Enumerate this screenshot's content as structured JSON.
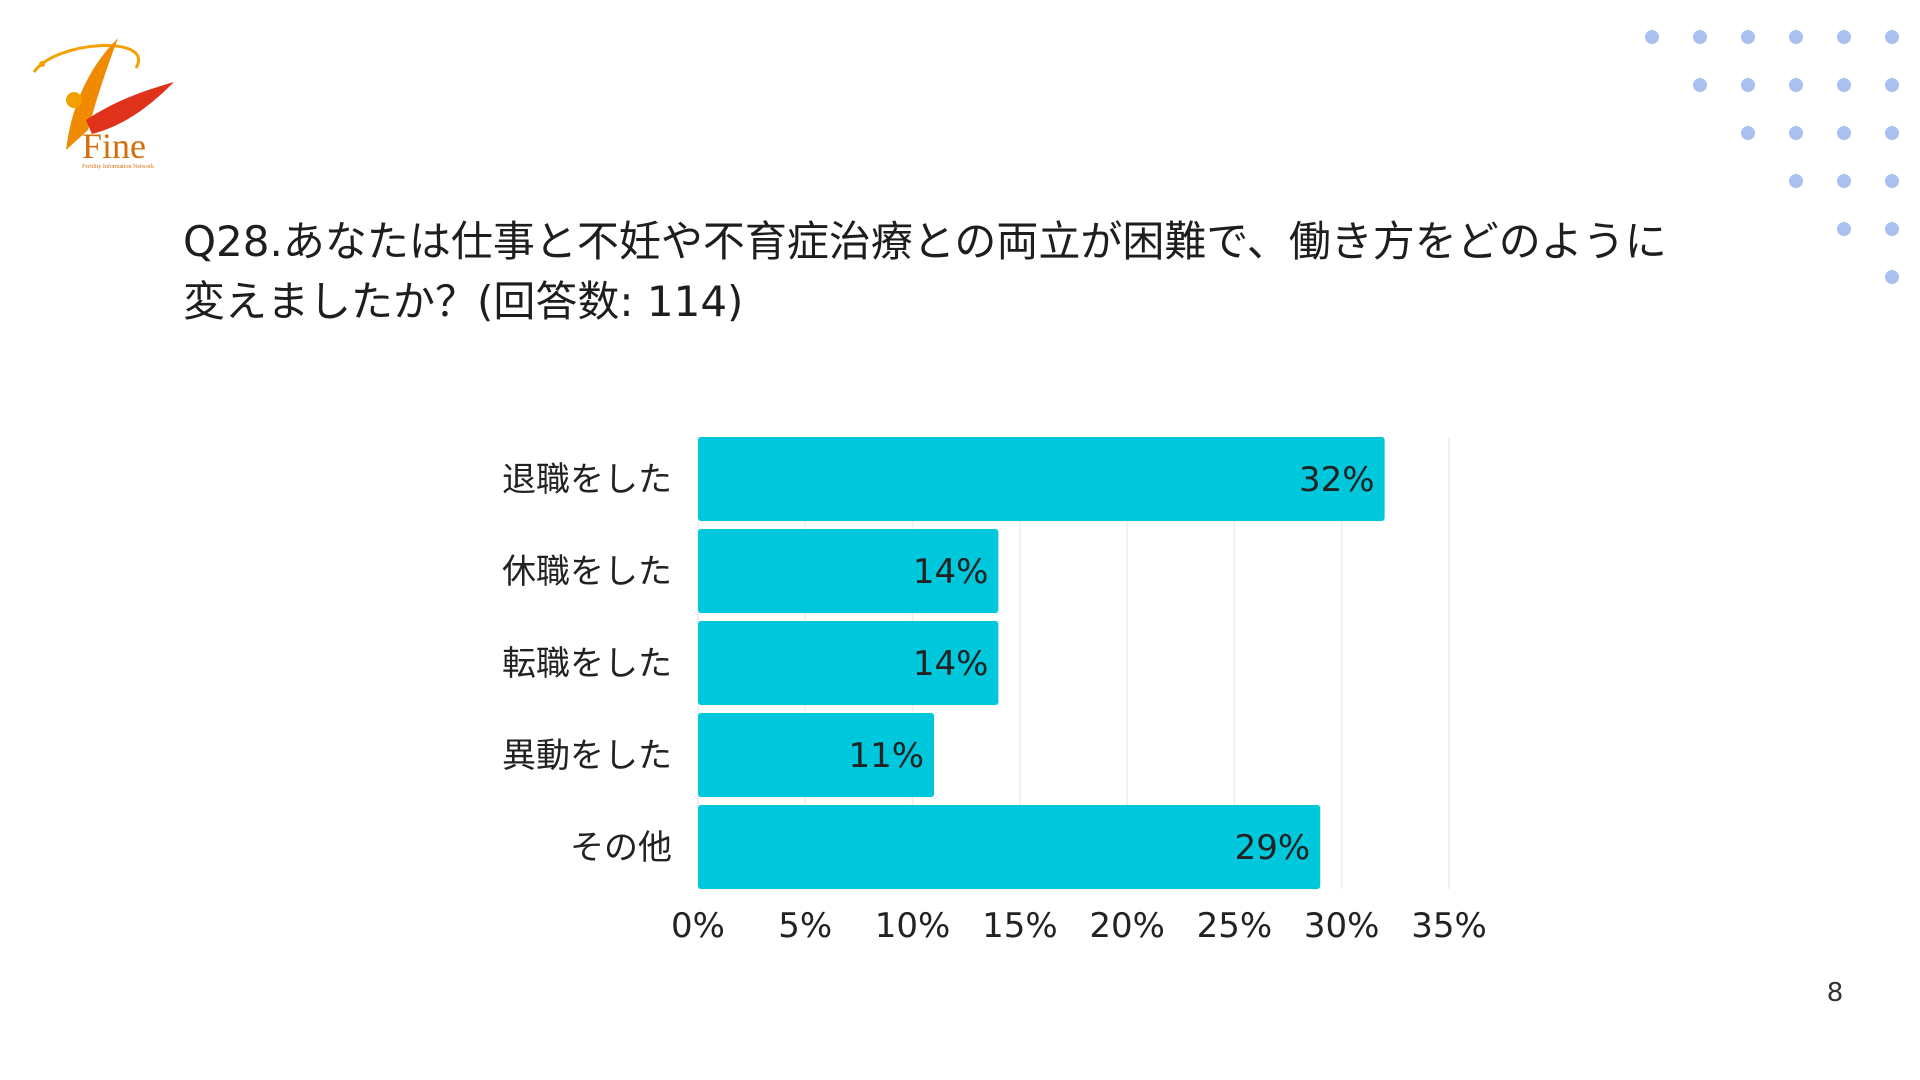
{
  "slide": {
    "logo_text": "Fine",
    "logo_subtext": "Fertility Information Network",
    "question_line1": "Q28.あなたは仕事と不妊や不育症治療との両立が困難で、働き方をどのように",
    "question_line2": "変えましたか？(回答数: 114)",
    "page_number": "8"
  },
  "colors": {
    "bar": "#00c8dc",
    "dots": "#a9c1ef",
    "grid": "#ececec",
    "logo_orange": "#f08a00",
    "logo_red": "#e0321a"
  },
  "chart_data": {
    "type": "bar",
    "orientation": "horizontal",
    "categories": [
      "退職をした",
      "休職をした",
      "転職をした",
      "異動をした",
      "その他"
    ],
    "values": [
      32,
      14,
      14,
      11,
      29
    ],
    "value_labels": [
      "32%",
      "14%",
      "14%",
      "11%",
      "29%"
    ],
    "xlim": [
      0,
      35
    ],
    "x_ticks": [
      "0%",
      "5%",
      "10%",
      "15%",
      "20%",
      "25%",
      "30%",
      "35%"
    ],
    "grid": true,
    "legend": "none"
  }
}
